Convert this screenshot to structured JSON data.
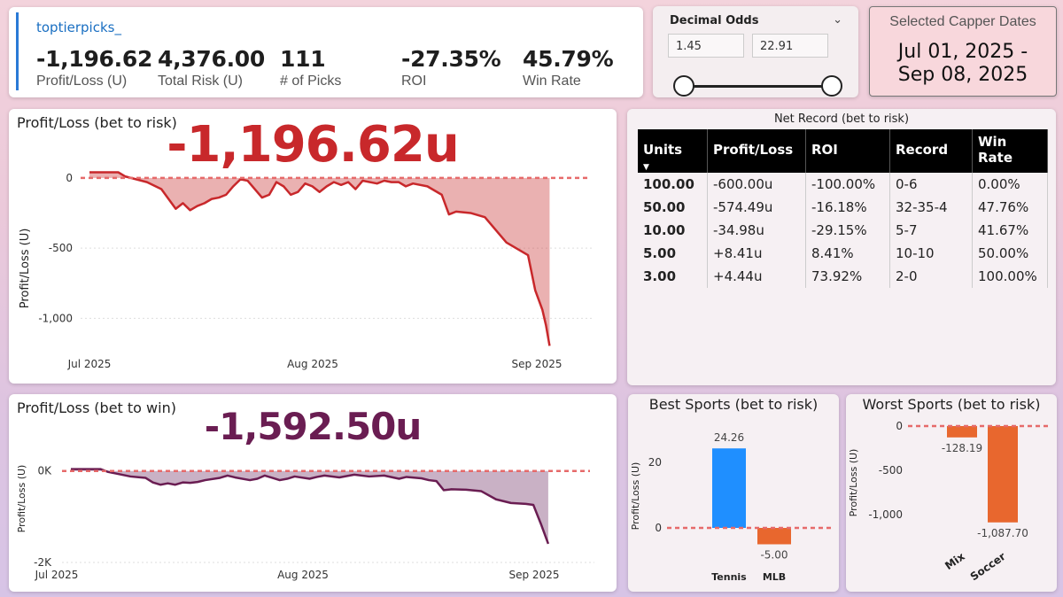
{
  "kpi": {
    "capper": "toptierpicks_",
    "items": [
      {
        "value": "-1,196.62",
        "label": "Profit/Loss (U)"
      },
      {
        "value": "4,376.00",
        "label": "Total Risk (U)"
      },
      {
        "value": "111",
        "label": "# of Picks"
      },
      {
        "value": "-27.35%",
        "label": "ROI"
      },
      {
        "value": "45.79%",
        "label": "Win Rate"
      }
    ]
  },
  "odds": {
    "title": "Decimal Odds",
    "min": "1.45",
    "max": "22.91",
    "chevron_icon": "chevron-down-icon"
  },
  "dates": {
    "title": "Selected Capper Dates",
    "line1": "Jul 01, 2025 -",
    "line2": "Sep 08, 2025"
  },
  "colors": {
    "risk_red": "#c8282b",
    "win_purple": "#6a1d52",
    "blue_bar": "#1f8fff",
    "orange_bar": "#e8672e",
    "zero_line": "#e66a6a"
  },
  "pl_risk": {
    "title": "Profit/Loss (bet to risk)",
    "big_value": "-1,196.62u",
    "chart_data": {
      "type": "area",
      "ylabel": "Profit/Loss (U)",
      "yticks": [
        "0",
        "-500",
        "-1,000"
      ],
      "xticks": [
        "Jul 2025",
        "Aug 2025",
        "Sep 2025"
      ],
      "ylim": [
        -1250,
        100
      ],
      "x_start": "2025-07-01",
      "x_end": "2025-09-08",
      "points": [
        [
          0,
          40
        ],
        [
          4,
          40
        ],
        [
          5,
          10
        ],
        [
          8,
          -30
        ],
        [
          10,
          -80
        ],
        [
          11,
          -150
        ],
        [
          12,
          -220
        ],
        [
          13,
          -180
        ],
        [
          14,
          -230
        ],
        [
          15,
          -200
        ],
        [
          16,
          -180
        ],
        [
          17,
          -150
        ],
        [
          18,
          -140
        ],
        [
          19,
          -120
        ],
        [
          20,
          -60
        ],
        [
          21,
          -10
        ],
        [
          22,
          -20
        ],
        [
          23,
          -80
        ],
        [
          24,
          -140
        ],
        [
          25,
          -120
        ],
        [
          26,
          -30
        ],
        [
          27,
          -60
        ],
        [
          28,
          -120
        ],
        [
          29,
          -100
        ],
        [
          30,
          -40
        ],
        [
          31,
          -60
        ],
        [
          32,
          -100
        ],
        [
          33,
          -60
        ],
        [
          34,
          -30
        ],
        [
          35,
          -50
        ],
        [
          36,
          -30
        ],
        [
          37,
          -80
        ],
        [
          38,
          -20
        ],
        [
          40,
          -40
        ],
        [
          41,
          -20
        ],
        [
          42,
          -30
        ],
        [
          43,
          -30
        ],
        [
          44,
          -60
        ],
        [
          45,
          -40
        ],
        [
          47,
          -60
        ],
        [
          48,
          -90
        ],
        [
          49,
          -120
        ],
        [
          50,
          -260
        ],
        [
          51,
          -240
        ],
        [
          53,
          -250
        ],
        [
          55,
          -280
        ],
        [
          57,
          -400
        ],
        [
          58,
          -460
        ],
        [
          60,
          -520
        ],
        [
          61,
          -550
        ],
        [
          62,
          -800
        ],
        [
          63,
          -940
        ],
        [
          63.5,
          -1050
        ],
        [
          64,
          -1196
        ]
      ],
      "zero_line": true
    }
  },
  "pl_win": {
    "title": "Profit/Loss (bet to win)",
    "big_value": "-1,592.50u",
    "chart_data": {
      "type": "area",
      "ylabel": "Profit/Loss (U)",
      "yticks": [
        "0K",
        "-2K"
      ],
      "xticks": [
        "Jul 2025",
        "Aug 2025",
        "Sep 2025"
      ],
      "ylim": [
        -2000,
        150
      ],
      "x_start": "2025-07-01",
      "x_end": "2025-09-08",
      "points": [
        [
          0,
          40
        ],
        [
          4,
          40
        ],
        [
          5,
          -20
        ],
        [
          8,
          -120
        ],
        [
          10,
          -150
        ],
        [
          11,
          -250
        ],
        [
          12,
          -300
        ],
        [
          13,
          -270
        ],
        [
          14,
          -300
        ],
        [
          15,
          -250
        ],
        [
          16,
          -260
        ],
        [
          17,
          -240
        ],
        [
          18,
          -200
        ],
        [
          20,
          -150
        ],
        [
          21,
          -100
        ],
        [
          22,
          -140
        ],
        [
          24,
          -200
        ],
        [
          25,
          -170
        ],
        [
          26,
          -100
        ],
        [
          27,
          -150
        ],
        [
          28,
          -200
        ],
        [
          29,
          -170
        ],
        [
          30,
          -120
        ],
        [
          32,
          -170
        ],
        [
          33,
          -130
        ],
        [
          34,
          -100
        ],
        [
          36,
          -140
        ],
        [
          38,
          -80
        ],
        [
          40,
          -120
        ],
        [
          42,
          -100
        ],
        [
          44,
          -170
        ],
        [
          45,
          -130
        ],
        [
          47,
          -160
        ],
        [
          48,
          -200
        ],
        [
          49,
          -220
        ],
        [
          50,
          -420
        ],
        [
          51,
          -400
        ],
        [
          53,
          -410
        ],
        [
          55,
          -440
        ],
        [
          57,
          -620
        ],
        [
          59,
          -700
        ],
        [
          61,
          -720
        ],
        [
          62,
          -740
        ],
        [
          63,
          -1150
        ],
        [
          64,
          -1592
        ]
      ],
      "zero_line": true
    }
  },
  "net_record": {
    "title": "Net Record (bet to risk)",
    "columns": [
      "Units",
      "Profit/Loss",
      "ROI",
      "Record",
      "Win Rate"
    ],
    "rows": [
      [
        "100.00",
        "-600.00u",
        "-100.00%",
        "0-6",
        "0.00%"
      ],
      [
        "50.00",
        "-574.49u",
        "-16.18%",
        "32-35-4",
        "47.76%"
      ],
      [
        "10.00",
        "-34.98u",
        "-29.15%",
        "5-7",
        "41.67%"
      ],
      [
        "5.00",
        "+8.41u",
        "8.41%",
        "10-10",
        "50.00%"
      ],
      [
        "3.00",
        "+4.44u",
        "73.92%",
        "2-0",
        "100.00%"
      ]
    ]
  },
  "best_sports": {
    "title": "Best Sports (bet to risk)",
    "chart_data": {
      "type": "bar",
      "categories": [
        "Tennis",
        "MLB"
      ],
      "values": [
        24.26,
        -5.0
      ],
      "labels": [
        "24.26",
        "-5.00"
      ],
      "ylabel": "Profit/Loss (U)",
      "yticks": [
        "20",
        "0"
      ],
      "ylim": [
        -10,
        30
      ]
    }
  },
  "worst_sports": {
    "title": "Worst Sports (bet to risk)",
    "chart_data": {
      "type": "bar",
      "categories": [
        "Mix",
        "Soccer"
      ],
      "values": [
        -128.19,
        -1087.7
      ],
      "labels": [
        "-128.19",
        "-1,087.70"
      ],
      "ylabel": "Profit/Loss (U)",
      "yticks": [
        "0",
        "-500",
        "-1,000"
      ],
      "ylim": [
        -1200,
        50
      ]
    }
  }
}
